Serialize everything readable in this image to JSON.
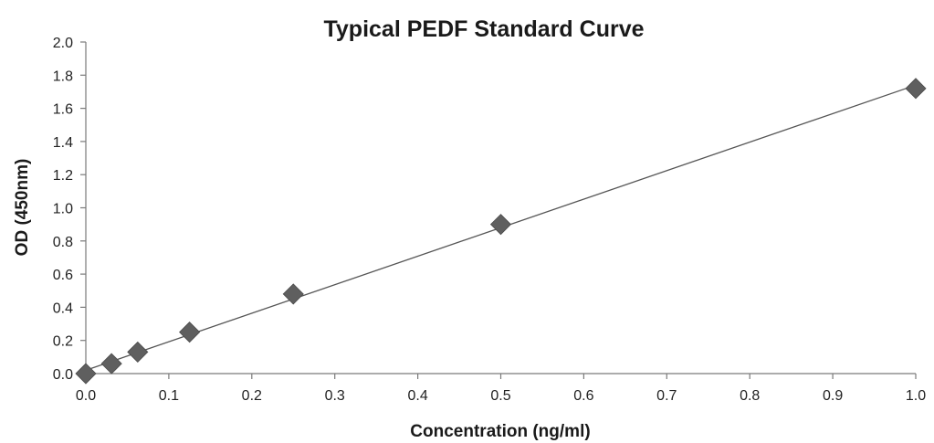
{
  "chart_data": {
    "type": "scatter",
    "title": "Typical PEDF Standard Curve",
    "xlabel": "Concentration (ng/ml)",
    "ylabel": "OD (450nm)",
    "xlim": [
      0,
      1.0
    ],
    "ylim": [
      0,
      2.0
    ],
    "x_ticks": [
      "0.0",
      "0.1",
      "0.2",
      "0.3",
      "0.4",
      "0.5",
      "0.6",
      "0.7",
      "0.8",
      "0.9",
      "1.0"
    ],
    "y_ticks": [
      "0.0",
      "0.2",
      "0.4",
      "0.6",
      "0.8",
      "1.0",
      "1.2",
      "1.4",
      "1.6",
      "1.8",
      "2.0"
    ],
    "grid": false,
    "legend": "none",
    "series": [
      {
        "marker": "diamond",
        "color": "#5f5f5f",
        "points": [
          {
            "x": 0.0,
            "y": 0.0
          },
          {
            "x": 0.031,
            "y": 0.06
          },
          {
            "x": 0.0625,
            "y": 0.13
          },
          {
            "x": 0.125,
            "y": 0.25
          },
          {
            "x": 0.25,
            "y": 0.48
          },
          {
            "x": 0.5,
            "y": 0.9
          },
          {
            "x": 1.0,
            "y": 1.72
          }
        ]
      }
    ],
    "trendline": {
      "type": "linear",
      "color": "#555555",
      "from": {
        "x": 0.0,
        "y": 0.02
      },
      "to": {
        "x": 1.0,
        "y": 1.74
      }
    }
  }
}
